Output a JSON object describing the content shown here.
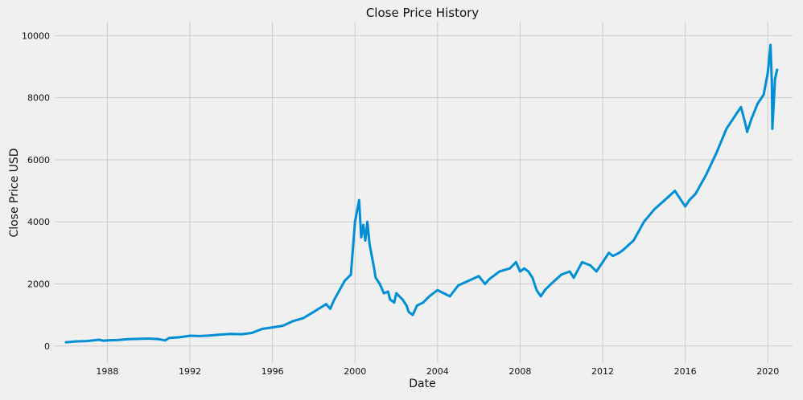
{
  "chart_data": {
    "type": "line",
    "title": "Close Price History",
    "xlabel": "Date",
    "ylabel": "Close Price USD",
    "xlim": [
      1985.45,
      2021.2
    ],
    "ylim": [
      -550,
      10450
    ],
    "x_ticks": [
      1988,
      1992,
      1996,
      2000,
      2004,
      2008,
      2012,
      2016,
      2020
    ],
    "x_tick_labels": [
      "1988",
      "1992",
      "1996",
      "2000",
      "2004",
      "2008",
      "2012",
      "2016",
      "2020"
    ],
    "y_ticks": [
      0,
      2000,
      4000,
      6000,
      8000,
      10000
    ],
    "y_tick_labels": [
      "0",
      "2000",
      "4000",
      "6000",
      "8000",
      "10000"
    ],
    "grid": true,
    "line_color": "#008fd5",
    "grid_color": "#cbcbcb",
    "background": "#f0f0f0",
    "series": [
      {
        "x": [
          1986.0,
          1986.5,
          1987.0,
          1987.6,
          1987.8,
          1988.0,
          1988.5,
          1989.0,
          1989.5,
          1990.0,
          1990.5,
          1990.8,
          1991.0,
          1991.5,
          1992.0,
          1992.5,
          1993.0,
          1993.5,
          1994.0,
          1994.5,
          1995.0,
          1995.5,
          1996.0,
          1996.5,
          1997.0,
          1997.5,
          1998.0,
          1998.6,
          1998.8,
          1999.0,
          1999.5,
          1999.8,
          2000.0,
          2000.2,
          2000.3,
          2000.4,
          2000.5,
          2000.6,
          2000.7,
          2000.9,
          2001.0,
          2001.2,
          2001.4,
          2001.6,
          2001.7,
          2001.9,
          2002.0,
          2002.3,
          2002.5,
          2002.6,
          2002.8,
          2003.0,
          2003.3,
          2003.6,
          2004.0,
          2004.3,
          2004.6,
          2005.0,
          2005.5,
          2006.0,
          2006.3,
          2006.5,
          2007.0,
          2007.5,
          2007.8,
          2008.0,
          2008.2,
          2008.4,
          2008.6,
          2008.8,
          2009.0,
          2009.2,
          2009.5,
          2010.0,
          2010.4,
          2010.6,
          2011.0,
          2011.4,
          2011.7,
          2012.0,
          2012.3,
          2012.5,
          2012.8,
          2013.0,
          2013.5,
          2014.0,
          2014.5,
          2015.0,
          2015.5,
          2015.7,
          2016.0,
          2016.2,
          2016.5,
          2017.0,
          2017.5,
          2018.0,
          2018.2,
          2018.5,
          2018.7,
          2018.9,
          2019.0,
          2019.2,
          2019.5,
          2019.8,
          2020.0,
          2020.13,
          2020.2,
          2020.22,
          2020.28,
          2020.35,
          2020.45
        ],
        "y": [
          120,
          150,
          160,
          200,
          170,
          180,
          190,
          220,
          230,
          240,
          220,
          180,
          260,
          280,
          330,
          320,
          340,
          370,
          390,
          380,
          420,
          550,
          600,
          650,
          800,
          900,
          1100,
          1350,
          1200,
          1500,
          2100,
          2300,
          4000,
          4700,
          3500,
          3900,
          3400,
          4000,
          3300,
          2600,
          2200,
          2000,
          1700,
          1750,
          1500,
          1400,
          1700,
          1500,
          1300,
          1100,
          1000,
          1300,
          1400,
          1600,
          1800,
          1700,
          1600,
          1950,
          2100,
          2250,
          2000,
          2150,
          2400,
          2500,
          2700,
          2400,
          2500,
          2400,
          2200,
          1800,
          1600,
          1800,
          2000,
          2300,
          2400,
          2200,
          2700,
          2600,
          2400,
          2700,
          3000,
          2900,
          3000,
          3100,
          3400,
          4000,
          4400,
          4700,
          5000,
          4800,
          4500,
          4700,
          4900,
          5500,
          6200,
          7000,
          7200,
          7500,
          7700,
          7200,
          6900,
          7300,
          7800,
          8100,
          8800,
          9700,
          8500,
          7000,
          7700,
          8600,
          8900
        ]
      }
    ]
  }
}
